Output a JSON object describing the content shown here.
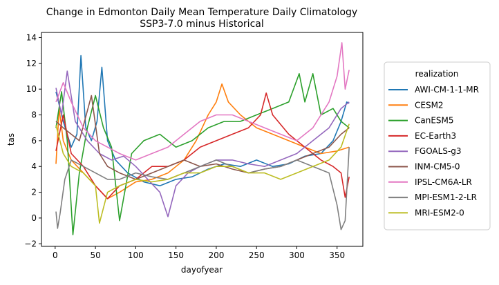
{
  "chart_data": {
    "type": "line",
    "title": "Change in Edmonton Daily Mean Temperature Daily Climatology",
    "subtitle": "SSP3-7.0 minus Historical",
    "xlabel": "dayofyear",
    "ylabel": "tas",
    "xlim": [
      -17,
      382
    ],
    "ylim": [
      -2.2,
      14.4
    ],
    "xticks": [
      0,
      50,
      100,
      150,
      200,
      250,
      300,
      350
    ],
    "yticks": [
      -2,
      0,
      2,
      4,
      6,
      8,
      10,
      12,
      14
    ],
    "grid": false,
    "legend": {
      "title": "realization",
      "placement": "right"
    },
    "series": [
      {
        "name": "AWI-CM-1-1-MR",
        "color": "#1f77b4",
        "x": [
          1,
          10,
          20,
          27,
          32,
          38,
          45,
          52,
          58,
          65,
          75,
          90,
          110,
          130,
          150,
          170,
          190,
          210,
          230,
          250,
          270,
          290,
          310,
          330,
          345,
          355,
          362,
          365
        ],
        "y": [
          9.8,
          7.5,
          5.5,
          6.5,
          12.6,
          7.0,
          6.0,
          7.5,
          11.7,
          6.0,
          4.5,
          3.5,
          2.8,
          2.5,
          3.0,
          3.2,
          3.8,
          4.2,
          4.0,
          4.5,
          4.0,
          4.2,
          4.8,
          5.0,
          6.0,
          7.5,
          9.0,
          8.9
        ]
      },
      {
        "name": "CESM2",
        "color": "#ff7f0e",
        "x": [
          1,
          5,
          10,
          20,
          35,
          50,
          65,
          80,
          100,
          120,
          140,
          160,
          175,
          190,
          200,
          207,
          215,
          230,
          250,
          270,
          290,
          310,
          330,
          350,
          365
        ],
        "y": [
          4.2,
          8.5,
          6.0,
          4.5,
          3.5,
          2.5,
          1.5,
          2.0,
          2.8,
          3.0,
          3.5,
          4.5,
          6.0,
          8.0,
          9.0,
          10.4,
          9.0,
          8.0,
          7.0,
          6.5,
          6.0,
          5.5,
          5.0,
          5.2,
          5.5
        ]
      },
      {
        "name": "CanESM5",
        "color": "#2ca02c",
        "x": [
          1,
          8,
          15,
          22,
          30,
          40,
          50,
          60,
          70,
          80,
          95,
          110,
          130,
          150,
          170,
          190,
          210,
          230,
          250,
          270,
          290,
          303,
          310,
          320,
          330,
          345,
          355,
          365
        ],
        "y": [
          7.0,
          9.8,
          6.0,
          -1.3,
          3.5,
          7.0,
          9.5,
          7.0,
          5.5,
          -0.2,
          5.0,
          6.0,
          6.5,
          5.5,
          6.0,
          7.0,
          7.5,
          7.5,
          8.0,
          8.5,
          9.0,
          11.2,
          9.0,
          11.2,
          8.0,
          8.5,
          7.5,
          7.0
        ]
      },
      {
        "name": "EC-Earth3",
        "color": "#d62728",
        "x": [
          1,
          10,
          20,
          35,
          50,
          65,
          80,
          100,
          120,
          140,
          160,
          180,
          200,
          220,
          240,
          255,
          262,
          270,
          290,
          310,
          330,
          345,
          355,
          360,
          365
        ],
        "y": [
          5.2,
          8.0,
          5.0,
          4.0,
          2.5,
          1.5,
          2.5,
          3.0,
          4.0,
          4.0,
          4.5,
          5.5,
          6.0,
          6.5,
          7.0,
          8.0,
          9.7,
          8.0,
          6.5,
          5.5,
          4.5,
          4.0,
          3.5,
          1.6,
          3.2
        ]
      },
      {
        "name": "FGOALS-g3",
        "color": "#9467bd",
        "x": [
          1,
          8,
          15,
          25,
          40,
          55,
          70,
          85,
          100,
          115,
          130,
          140,
          150,
          165,
          180,
          200,
          220,
          240,
          260,
          280,
          300,
          320,
          340,
          355,
          365
        ],
        "y": [
          10.1,
          8.0,
          11.4,
          7.5,
          6.0,
          5.0,
          4.5,
          4.8,
          4.0,
          3.0,
          2.0,
          0.1,
          2.5,
          3.5,
          4.0,
          4.5,
          4.5,
          4.2,
          4.0,
          4.5,
          5.0,
          6.0,
          7.0,
          8.5,
          9.0
        ]
      },
      {
        "name": "INM-CM5-0",
        "color": "#8c564b",
        "x": [
          1,
          10,
          20,
          30,
          45,
          55,
          65,
          80,
          100,
          120,
          140,
          160,
          180,
          200,
          220,
          240,
          260,
          280,
          300,
          320,
          340,
          355,
          365
        ],
        "y": [
          7.5,
          7.0,
          6.5,
          6.0,
          9.5,
          5.0,
          4.0,
          3.5,
          3.0,
          3.5,
          4.0,
          4.5,
          4.0,
          4.2,
          3.8,
          3.5,
          3.8,
          4.0,
          4.5,
          5.0,
          5.5,
          6.5,
          7.0
        ]
      },
      {
        "name": "IPSL-CM6A-LR",
        "color": "#e377c2",
        "x": [
          1,
          10,
          20,
          35,
          50,
          65,
          80,
          100,
          120,
          140,
          160,
          180,
          200,
          220,
          240,
          260,
          280,
          300,
          320,
          340,
          350,
          356,
          360,
          365
        ],
        "y": [
          9.0,
          10.5,
          9.0,
          7.0,
          6.0,
          5.5,
          5.0,
          4.5,
          5.0,
          5.5,
          6.5,
          7.5,
          8.0,
          8.0,
          7.5,
          7.0,
          6.5,
          6.0,
          7.0,
          9.0,
          11.0,
          13.6,
          10.0,
          11.5
        ]
      },
      {
        "name": "MPI-ESM1-2-LR",
        "color": "#7f7f7f",
        "x": [
          1,
          3,
          6,
          12,
          20,
          35,
          50,
          65,
          80,
          100,
          120,
          140,
          160,
          180,
          200,
          220,
          240,
          260,
          280,
          300,
          320,
          340,
          350,
          355,
          360,
          365
        ],
        "y": [
          0.5,
          -0.8,
          0.3,
          3.0,
          4.5,
          4.0,
          3.5,
          3.0,
          3.0,
          3.5,
          3.2,
          3.0,
          3.5,
          4.0,
          4.5,
          4.0,
          3.5,
          3.8,
          4.0,
          4.5,
          4.0,
          3.5,
          1.0,
          -0.9,
          -0.2,
          5.5
        ]
      },
      {
        "name": "MRI-ESM2-0",
        "color": "#bcbd22",
        "x": [
          1,
          10,
          20,
          35,
          50,
          55,
          65,
          80,
          100,
          120,
          140,
          160,
          180,
          200,
          220,
          240,
          260,
          280,
          300,
          320,
          340,
          355,
          365
        ],
        "y": [
          7.2,
          5.0,
          4.0,
          3.5,
          2.5,
          -0.4,
          2.0,
          2.5,
          3.0,
          2.8,
          3.0,
          3.5,
          3.5,
          4.0,
          4.0,
          3.5,
          3.5,
          3.0,
          3.5,
          4.0,
          4.5,
          5.5,
          7.3
        ]
      }
    ]
  }
}
